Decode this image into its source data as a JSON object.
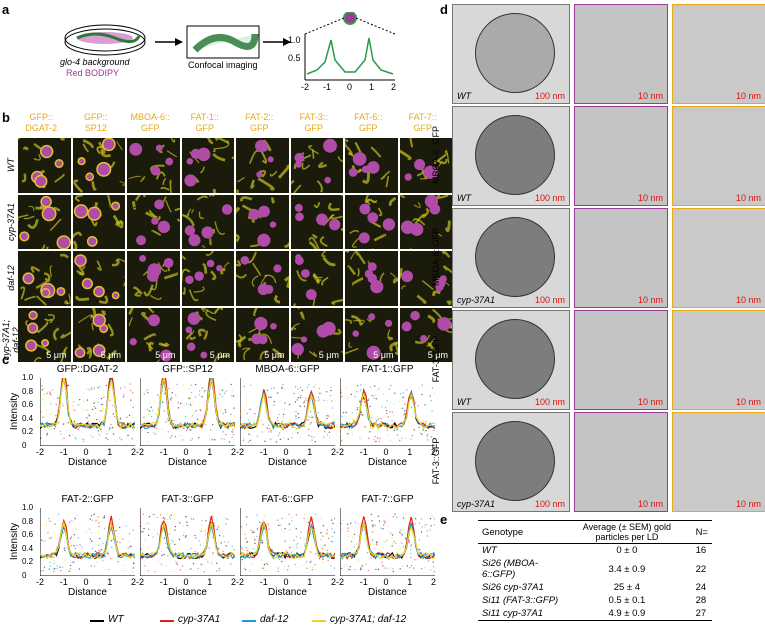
{
  "panels": {
    "a": "a",
    "b": "b",
    "c": "c",
    "d": "d",
    "e": "e"
  },
  "panel_a": {
    "dish_line1": "glo-4 background",
    "dish_line2": "Red BODIPY",
    "step2": "Confocal imaging",
    "plot_xticks": [
      "-2",
      "-1",
      "0",
      "1",
      "2"
    ],
    "plot_yticks": [
      "1.0",
      "0.5"
    ]
  },
  "panel_b": {
    "columns": [
      {
        "line1": "GFP::",
        "line2": "DGAT-2"
      },
      {
        "line1": "GFP::",
        "line2": "SP12"
      },
      {
        "line1": "MBOA-6::",
        "line2": "GFP"
      },
      {
        "line1": "FAT-1::",
        "line2": "GFP"
      },
      {
        "line1": "FAT-2::",
        "line2": "GFP"
      },
      {
        "line1": "FAT-3::",
        "line2": "GFP"
      },
      {
        "line1": "FAT-6::",
        "line2": "GFP"
      },
      {
        "line1": "FAT-7::",
        "line2": "GFP"
      }
    ],
    "rows": [
      "WT",
      "cyp-37A1",
      "daf-12",
      "cyp-37A1; daf-12"
    ],
    "scalebar": "5 μm"
  },
  "panel_c": {
    "plots": [
      {
        "title": "GFP::DGAT-2"
      },
      {
        "title": "GFP::SP12"
      },
      {
        "title": "MBOA-6::GFP"
      },
      {
        "title": "FAT-1::GFP"
      },
      {
        "title": "FAT-2::GFP"
      },
      {
        "title": "FAT-3::GFP"
      },
      {
        "title": "FAT-6::GFP"
      },
      {
        "title": "FAT-7::GFP"
      }
    ],
    "ylabel": "Intensity",
    "xlabel": "Distance",
    "xticks": [
      "-2",
      "-1",
      "0",
      "1",
      "2"
    ],
    "yticks": [
      "1.0",
      "0.8",
      "0.6",
      "0.4",
      "0.2",
      "0"
    ],
    "legend": [
      {
        "name": "WT",
        "color": "#000000"
      },
      {
        "name": "cyp-37A1",
        "color": "#e0201b"
      },
      {
        "name": "daf-12",
        "color": "#1f9ad6"
      },
      {
        "name": "cyp-37A1; daf-12",
        "color": "#e6d820"
      }
    ]
  },
  "panel_d": {
    "rows": [
      {
        "label": "WT",
        "side": ""
      },
      {
        "label": "WT",
        "side": "MBOA-6::GFP"
      },
      {
        "label": "cyp-37A1",
        "side": "MBOA-6::GFP"
      },
      {
        "label": "WT",
        "side": "FAT-3::GFP"
      },
      {
        "label": "cyp-37A1",
        "side": "FAT-3::GFP"
      }
    ],
    "scale_large": "100 nm",
    "scale_small": "10 nm"
  },
  "panel_e": {
    "headers": [
      "Genotype",
      "Average (± SEM) gold particles per LD",
      "N="
    ],
    "rows": [
      {
        "genotype": "WT",
        "avg": "0 ± 0",
        "n": "16"
      },
      {
        "genotype": "Si26 (MBOA-6::GFP)",
        "avg": "3.4 ± 0.9",
        "n": "22"
      },
      {
        "genotype": "Si26 cyp-37A1",
        "avg": "25 ± 4",
        "n": "24"
      },
      {
        "genotype": "Si11 (FAT-3::GFP)",
        "avg": "0.5 ± 0.1",
        "n": "28"
      },
      {
        "genotype": "Si11 cyp-37A1",
        "avg": "4.9 ± 0.9",
        "n": "27"
      }
    ]
  }
}
